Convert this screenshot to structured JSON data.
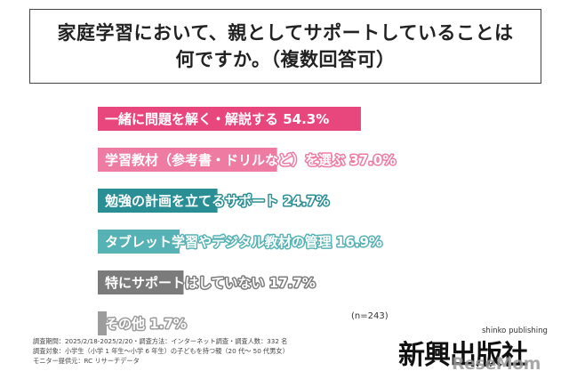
{
  "title": {
    "line1": "家庭学習において、親としてサポートしていることは",
    "line2": "何ですか。（複数回答可）"
  },
  "chart_data": {
    "type": "bar",
    "orientation": "horizontal",
    "categories": [
      "一緒に問題を解く・解説する",
      "学習教材（参考書・ドリルなど）を選ぶ",
      "勉強の計画を立てるサポート",
      "タブレット学習やデジタル教材の管理",
      "特にサポートはしていない",
      "その他"
    ],
    "values": [
      54.3,
      37.0,
      24.7,
      16.9,
      17.7,
      1.7
    ],
    "value_labels": [
      "54.3%",
      "37.0%",
      "24.7%",
      "16.9%",
      "17.7%",
      "1.7%"
    ],
    "colors": [
      "#e8477e",
      "#ee7ba1",
      "#2a8f95",
      "#56b2b4",
      "#7b7b7b",
      "#9c9c9c"
    ],
    "xlim": [
      0,
      60
    ],
    "grid": false,
    "legend": "none"
  },
  "sample_size": "(n=243)",
  "footnotes": [
    "調査期間：2025/2/18-2025/2/20・調査方法：インターネット調査・調査人数：332 名",
    "調査対象：小学生（小学 1 年生〜小学 6 年生）の子どもを持つ親（20 代〜 50 代男女）",
    "モニター提供元：RC リサーチデータ"
  ],
  "logo": {
    "name": "新興出版社",
    "sub": "shinko publishing",
    "watermark": "ReseMom"
  }
}
